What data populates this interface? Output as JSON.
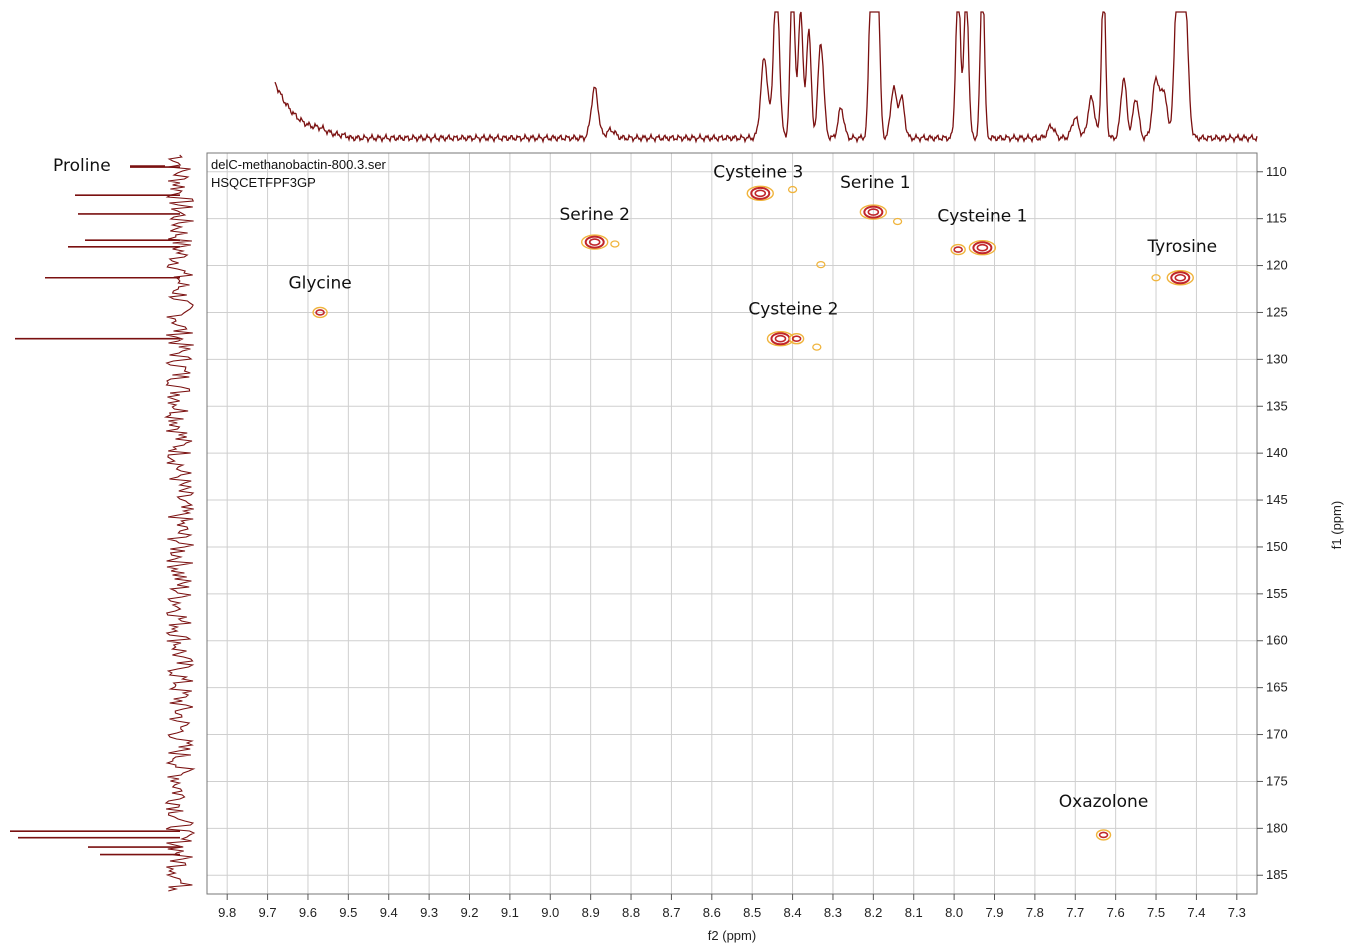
{
  "chart_data": {
    "type": "scatter",
    "title": "",
    "info_lines": [
      "delC-methanobactin-800.3.ser",
      "HSQCETFPF3GP"
    ],
    "xlabel": "f2 (ppm)",
    "ylabel": "f1 (ppm)",
    "xlim": [
      9.85,
      7.25
    ],
    "ylim": [
      108,
      187
    ],
    "x_reversed": true,
    "y_reversed": true,
    "grid": true,
    "x_ticks": [
      9.8,
      9.7,
      9.6,
      9.5,
      9.4,
      9.3,
      9.2,
      9.1,
      9.0,
      8.9,
      8.8,
      8.7,
      8.6,
      8.5,
      8.4,
      8.3,
      8.2,
      8.1,
      8.0,
      7.9,
      7.8,
      7.7,
      7.6,
      7.5,
      7.4,
      7.3
    ],
    "x_tick_labels": [
      "9.8",
      "9.7",
      "9.6",
      "9.5",
      "9.4",
      "9.3",
      "9.2",
      "9.1",
      "9.0",
      "8.9",
      "8.8",
      "8.7",
      "8.6",
      "8.5",
      "8.4",
      "8.3",
      "8.2",
      "8.1",
      "8.0",
      "7.9",
      "7.8",
      "7.7",
      "7.6",
      "7.5",
      "7.4",
      "7.3"
    ],
    "y_ticks": [
      110,
      115,
      120,
      125,
      130,
      135,
      140,
      145,
      150,
      155,
      160,
      165,
      170,
      175,
      180,
      185
    ],
    "y_tick_labels": [
      "110",
      "115",
      "120",
      "125",
      "130",
      "135",
      "140",
      "145",
      "150",
      "155",
      "160",
      "165",
      "170",
      "175",
      "180",
      "185"
    ],
    "colors": {
      "spectrum": "#7a1010",
      "contour_strong": "#c0262a",
      "contour_weak": "#f0b43c",
      "grid": "#cfcfcf"
    },
    "peaks": [
      {
        "label": "Glycine",
        "x": 9.57,
        "y": 125.0,
        "intensity": "medium"
      },
      {
        "label": "Serine 2",
        "x": 8.89,
        "y": 117.5,
        "intensity": "strong"
      },
      {
        "label": "",
        "x": 8.84,
        "y": 117.7,
        "intensity": "weak"
      },
      {
        "label": "Cysteine 3",
        "x": 8.48,
        "y": 112.3,
        "intensity": "strong"
      },
      {
        "label": "",
        "x": 8.4,
        "y": 111.9,
        "intensity": "weak"
      },
      {
        "label": "Serine 1",
        "x": 8.2,
        "y": 114.3,
        "intensity": "strong"
      },
      {
        "label": "",
        "x": 8.14,
        "y": 115.3,
        "intensity": "weak"
      },
      {
        "label": "Cysteine 1",
        "x": 7.93,
        "y": 118.1,
        "intensity": "strong"
      },
      {
        "label": "",
        "x": 7.99,
        "y": 118.3,
        "intensity": "medium"
      },
      {
        "label": "Tyrosine",
        "x": 7.44,
        "y": 121.3,
        "intensity": "strong"
      },
      {
        "label": "",
        "x": 7.5,
        "y": 121.3,
        "intensity": "weak"
      },
      {
        "label": "Cysteine 2",
        "x": 8.43,
        "y": 127.8,
        "intensity": "strong"
      },
      {
        "label": "",
        "x": 8.39,
        "y": 127.8,
        "intensity": "medium"
      },
      {
        "label": "",
        "x": 8.34,
        "y": 128.7,
        "intensity": "weak"
      },
      {
        "label": "",
        "x": 8.33,
        "y": 119.9,
        "intensity": "weak"
      },
      {
        "label": "Oxazolone",
        "x": 7.63,
        "y": 180.7,
        "intensity": "medium"
      }
    ],
    "proline_label": "Proline",
    "proline_marker_y": 109.5
  }
}
